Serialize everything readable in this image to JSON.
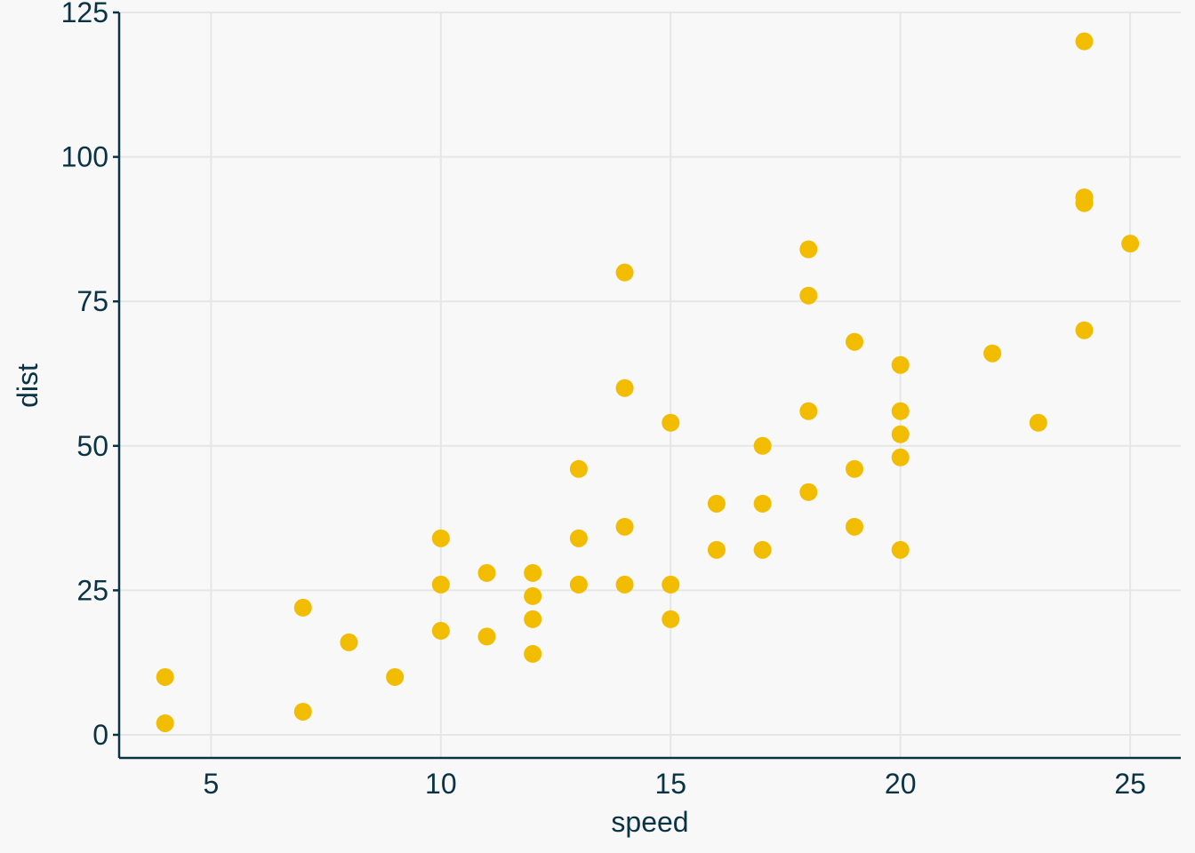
{
  "chart_data": {
    "type": "scatter",
    "title": "",
    "xlabel": "speed",
    "ylabel": "dist",
    "xlim": [
      3,
      26.1
    ],
    "ylim": [
      -4,
      125
    ],
    "xticks": [
      5,
      10,
      15,
      20,
      25
    ],
    "yticks": [
      0,
      25,
      50,
      75,
      100,
      125
    ],
    "grid": true,
    "legend": "none",
    "colors": {
      "point": "#f2bc00",
      "axis": "#0b3346",
      "grid": "#e6e6e6",
      "background": "#f8f8f8"
    },
    "series": [
      {
        "points": [
          [
            4,
            2
          ],
          [
            4,
            10
          ],
          [
            7,
            4
          ],
          [
            7,
            22
          ],
          [
            8,
            16
          ],
          [
            9,
            10
          ],
          [
            10,
            18
          ],
          [
            10,
            26
          ],
          [
            10,
            34
          ],
          [
            11,
            17
          ],
          [
            11,
            28
          ],
          [
            12,
            14
          ],
          [
            12,
            20
          ],
          [
            12,
            24
          ],
          [
            12,
            28
          ],
          [
            13,
            26
          ],
          [
            13,
            34
          ],
          [
            13,
            46
          ],
          [
            14,
            26
          ],
          [
            14,
            36
          ],
          [
            14,
            60
          ],
          [
            14,
            80
          ],
          [
            15,
            20
          ],
          [
            15,
            26
          ],
          [
            15,
            54
          ],
          [
            16,
            32
          ],
          [
            16,
            40
          ],
          [
            17,
            32
          ],
          [
            17,
            40
          ],
          [
            17,
            50
          ],
          [
            18,
            42
          ],
          [
            18,
            56
          ],
          [
            18,
            76
          ],
          [
            18,
            84
          ],
          [
            19,
            36
          ],
          [
            19,
            46
          ],
          [
            19,
            68
          ],
          [
            20,
            32
          ],
          [
            20,
            48
          ],
          [
            20,
            52
          ],
          [
            20,
            56
          ],
          [
            20,
            64
          ],
          [
            22,
            66
          ],
          [
            23,
            54
          ],
          [
            24,
            70
          ],
          [
            24,
            92
          ],
          [
            24,
            93
          ],
          [
            24,
            120
          ],
          [
            25,
            85
          ]
        ]
      }
    ]
  }
}
